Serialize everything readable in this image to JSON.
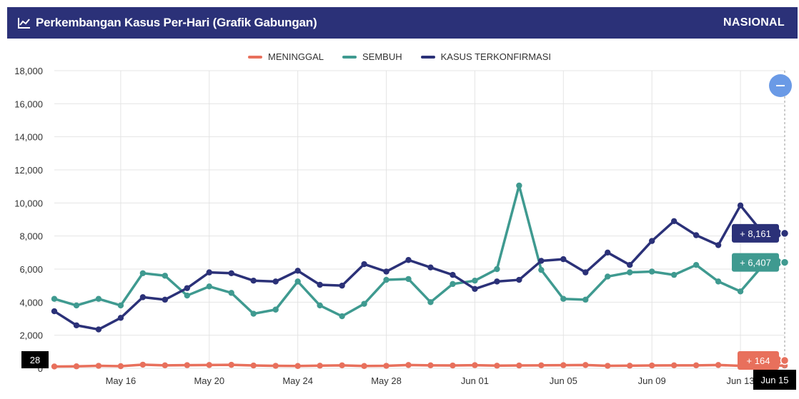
{
  "header": {
    "title": "Perkembangan Kasus Per-Hari (Grafik Gabungan)",
    "icon": "line-chart-icon",
    "region": "NASIONAL"
  },
  "colors": {
    "meninggal": "#e8705c",
    "sembuh": "#3f9a90",
    "kasus": "#2b3178",
    "header_bg": "#2b3178",
    "zoom_button": "#6a9ae6"
  },
  "chart_data": {
    "type": "line",
    "title": "Perkembangan Kasus Per-Hari (Grafik Gabungan)",
    "legend_position": "top-center",
    "grid": true,
    "ylim": [
      0,
      18000
    ],
    "y_ticks": [
      "0",
      "2,000",
      "4,000",
      "6,000",
      "8,000",
      "10,000",
      "12,000",
      "14,000",
      "16,000",
      "18,000"
    ],
    "x_tick_labels": [
      "May 16",
      "May 20",
      "May 24",
      "May 28",
      "Jun 01",
      "Jun 05",
      "Jun 09",
      "Jun 13"
    ],
    "x_start": "May 13",
    "x_end": "Jun 15",
    "x": [
      "May 13",
      "May 14",
      "May 15",
      "May 16",
      "May 17",
      "May 18",
      "May 19",
      "May 20",
      "May 21",
      "May 22",
      "May 23",
      "May 24",
      "May 25",
      "May 26",
      "May 27",
      "May 28",
      "May 29",
      "May 30",
      "May 31",
      "Jun 01",
      "Jun 02",
      "Jun 03",
      "Jun 04",
      "Jun 05",
      "Jun 06",
      "Jun 07",
      "Jun 08",
      "Jun 09",
      "Jun 10",
      "Jun 11",
      "Jun 12",
      "Jun 13",
      "Jun 14",
      "Jun 15"
    ],
    "series": [
      {
        "name": "MENINGGAL",
        "key": "meninggal",
        "values": [
          110,
          120,
          150,
          130,
          220,
          180,
          190,
          200,
          210,
          170,
          150,
          140,
          160,
          180,
          140,
          150,
          200,
          180,
          170,
          190,
          160,
          170,
          180,
          190,
          200,
          150,
          160,
          170,
          180,
          180,
          200,
          150,
          170,
          164
        ]
      },
      {
        "name": "SEMBUH",
        "key": "sembuh",
        "values": [
          4200,
          3800,
          4200,
          3800,
          5750,
          5600,
          4400,
          4950,
          4560,
          3300,
          3550,
          5250,
          3800,
          3150,
          3900,
          5350,
          5400,
          4000,
          5100,
          5300,
          6000,
          11050,
          5950,
          4200,
          4150,
          5550,
          5800,
          5850,
          5650,
          6250,
          5250,
          4650,
          6200,
          6407
        ]
      },
      {
        "name": "KASUS TERKONFIRMASI",
        "key": "kasus",
        "values": [
          3450,
          2600,
          2350,
          3050,
          4300,
          4150,
          4850,
          5800,
          5750,
          5300,
          5250,
          5900,
          5050,
          5000,
          6300,
          5850,
          6550,
          6100,
          5650,
          4800,
          5250,
          5350,
          6500,
          6600,
          5800,
          7000,
          6250,
          7700,
          8900,
          8050,
          7450,
          9850,
          8200,
          8161
        ]
      }
    ],
    "tooltips": {
      "kasus": "+ 8,161",
      "sembuh": "+ 6,407",
      "meninggal": "+ 164",
      "hover_date": "Jun 15",
      "y_crosshair": "28"
    }
  }
}
